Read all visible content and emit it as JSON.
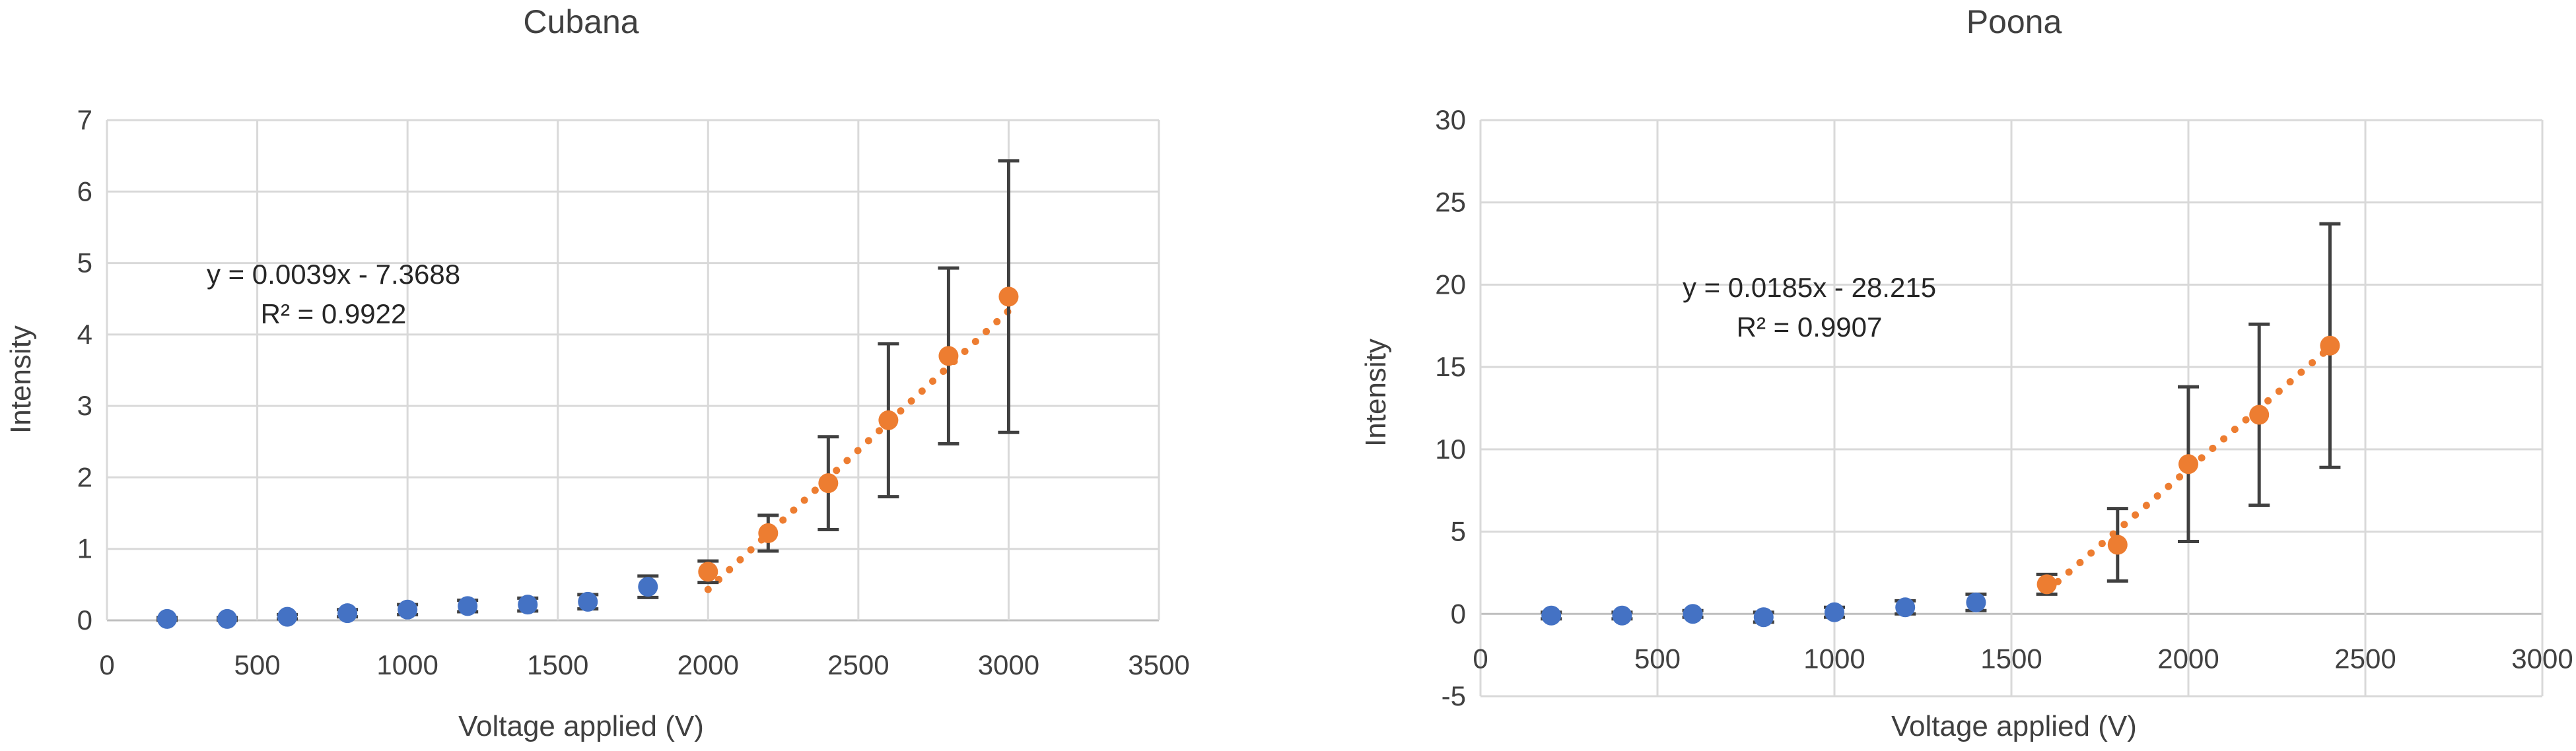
{
  "colors": {
    "series_blue": "#4472c4",
    "series_orange": "#ed7d31",
    "error_bar": "#404040",
    "grid": "#d9d9d9",
    "text": "#404040"
  },
  "chart_data": [
    {
      "type": "scatter",
      "title": "Cubana",
      "xlabel": "Voltage applied (V)",
      "ylabel": "Intensity",
      "xlim": [
        0,
        3500
      ],
      "ylim": [
        0,
        7
      ],
      "xticks": [
        0,
        500,
        1000,
        1500,
        2000,
        2500,
        3000,
        3500
      ],
      "yticks": [
        0,
        1,
        2,
        3,
        4,
        5,
        6,
        7
      ],
      "grid": true,
      "series": [
        {
          "color": "#4472c4",
          "x": [
            200,
            400,
            600,
            800,
            1000,
            1200,
            1400,
            1600,
            1800
          ],
          "y": [
            0.02,
            0.02,
            0.05,
            0.1,
            0.15,
            0.2,
            0.22,
            0.26,
            0.47
          ],
          "err": [
            0.02,
            0.02,
            0.03,
            0.05,
            0.07,
            0.08,
            0.09,
            0.1,
            0.15
          ]
        },
        {
          "color": "#ed7d31",
          "x": [
            2000,
            2200,
            2400,
            2600,
            2800,
            3000
          ],
          "y": [
            0.68,
            1.22,
            1.92,
            2.8,
            3.7,
            4.53
          ],
          "err": [
            0.15,
            0.25,
            0.65,
            1.07,
            1.23,
            1.9
          ]
        }
      ],
      "trendline": {
        "x_range": [
          2000,
          3000
        ],
        "slope": 0.0039,
        "intercept": -7.3688
      },
      "annotations": [
        "y = 0.0039x - 7.3688",
        "R² = 0.9922"
      ]
    },
    {
      "type": "scatter",
      "title": "Poona",
      "xlabel": "Voltage applied (V)",
      "ylabel": "Intensity",
      "xlim": [
        0,
        3000
      ],
      "ylim": [
        -5,
        30
      ],
      "xticks": [
        0,
        500,
        1000,
        1500,
        2000,
        2500,
        3000
      ],
      "yticks": [
        -5,
        0,
        5,
        10,
        15,
        20,
        25,
        30
      ],
      "grid": true,
      "series": [
        {
          "color": "#4472c4",
          "x": [
            200,
            400,
            600,
            800,
            1000,
            1200,
            1400
          ],
          "y": [
            -0.1,
            -0.1,
            0.0,
            -0.2,
            0.1,
            0.4,
            0.7
          ],
          "err": [
            0.2,
            0.2,
            0.2,
            0.3,
            0.3,
            0.4,
            0.5
          ]
        },
        {
          "color": "#ed7d31",
          "x": [
            1600,
            1800,
            2000,
            2200,
            2400
          ],
          "y": [
            1.8,
            4.2,
            9.1,
            12.1,
            16.3
          ],
          "err": [
            0.6,
            2.2,
            4.7,
            5.5,
            7.4
          ]
        }
      ],
      "trendline": {
        "x_range": [
          1600,
          2400
        ],
        "slope": 0.0185,
        "intercept": -28.215
      },
      "annotations": [
        "y = 0.0185x - 28.215",
        "R² = 0.9907"
      ]
    }
  ]
}
